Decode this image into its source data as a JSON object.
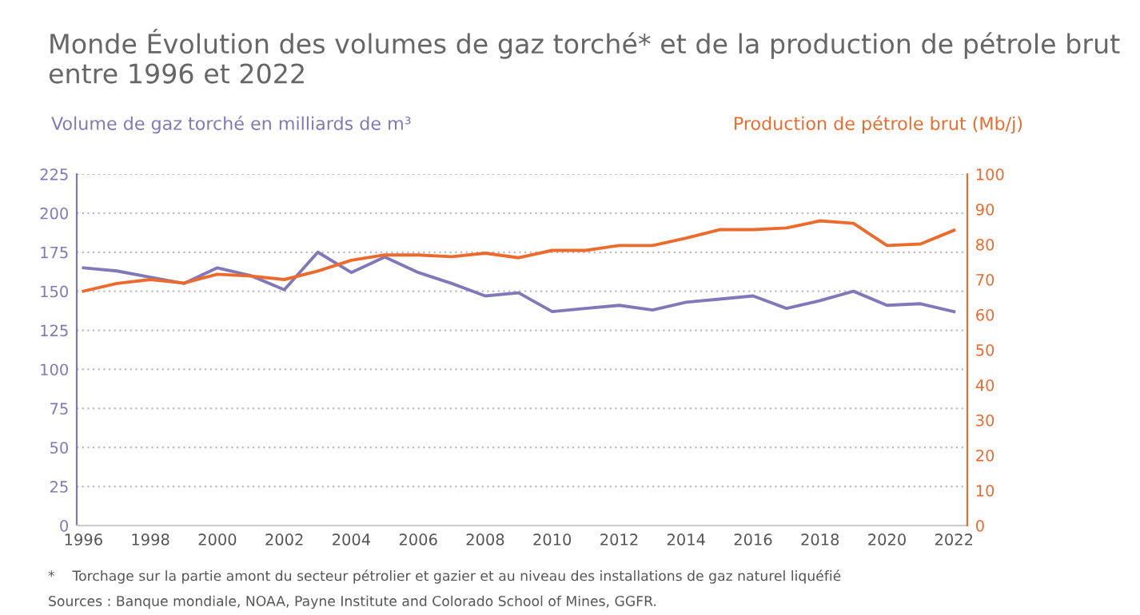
{
  "chart_data": {
    "type": "line",
    "title": "Monde Évolution des volumes de gaz torché* et de la production de pétrole brut\nentre 1996 et 2022",
    "ylabel": "Volume de gaz torché en milliards de m³",
    "y2label": "Production de pétrole brut (Mb/j)",
    "x": [
      1996,
      1997,
      1998,
      1999,
      2000,
      2001,
      2002,
      2003,
      2004,
      2005,
      2006,
      2007,
      2008,
      2009,
      2010,
      2011,
      2012,
      2013,
      2014,
      2015,
      2016,
      2017,
      2018,
      2019,
      2020,
      2021,
      2022
    ],
    "series": [
      {
        "color": "#8078b8",
        "values": [
          165,
          163,
          159,
          155,
          165,
          160,
          151,
          175,
          162,
          172,
          162,
          155,
          147,
          149,
          137,
          139,
          141,
          138,
          143,
          145,
          147,
          139,
          144,
          150,
          141,
          142,
          137
        ]
      },
      {
        "color": "#ec6a2c",
        "axis": "y2",
        "values": [
          66.7,
          68.9,
          70,
          69,
          71.5,
          71,
          70,
          72.4,
          75.5,
          77,
          77,
          76.5,
          77.5,
          76.2,
          78.3,
          78.3,
          79.7,
          79.7,
          81.8,
          84.2,
          84.2,
          84.7,
          86.7,
          86,
          79.7,
          80.1,
          84
        ]
      }
    ],
    "xlim": [
      1995.8,
      2022.4
    ],
    "xticks": [
      1996,
      1998,
      2000,
      2002,
      2004,
      2006,
      2008,
      2010,
      2012,
      2014,
      2016,
      2018,
      2020,
      2022
    ],
    "ylim": [
      0,
      225
    ],
    "yticks": [
      0,
      25,
      50,
      75,
      100,
      125,
      150,
      175,
      200,
      225
    ],
    "y2lim": [
      0,
      100
    ],
    "y2ticks": [
      0,
      10,
      20,
      30,
      40,
      50,
      60,
      70,
      80,
      90,
      100
    ],
    "grid": "y",
    "legend": false,
    "annotations": [
      "*    Torchage sur la partie amont du secteur pétrolier et gazier et au niveau des installations de gaz naturel liquéfié",
      "Sources : Banque mondiale, NOAA, Payne Institute and Colorado School of Mines, GGFR."
    ]
  }
}
